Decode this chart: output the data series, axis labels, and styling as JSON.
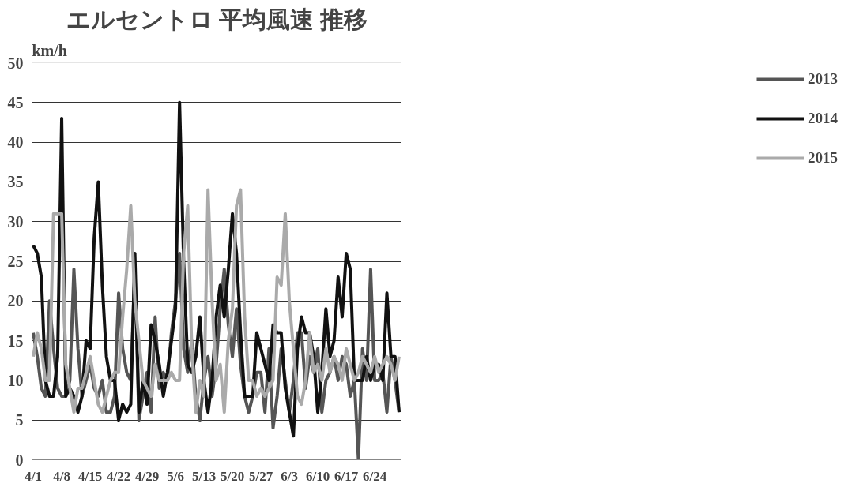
{
  "chart_data": {
    "type": "line",
    "title": "エルセントロ 平均風速 推移",
    "ylabel": "km/h",
    "categories": [
      "4/1",
      null,
      null,
      null,
      null,
      null,
      null,
      "4/8",
      null,
      null,
      null,
      null,
      null,
      null,
      "4/15",
      null,
      null,
      null,
      null,
      null,
      null,
      "4/22",
      null,
      null,
      null,
      null,
      null,
      null,
      "4/29",
      null,
      null,
      null,
      null,
      null,
      null,
      "5/6",
      null,
      null,
      null,
      null,
      null,
      null,
      "5/13",
      null,
      null,
      null,
      null,
      null,
      null,
      "5/20",
      null,
      null,
      null,
      null,
      null,
      null,
      "5/27",
      null,
      null,
      null,
      null,
      null,
      null,
      "6/3",
      null,
      null,
      null,
      null,
      null,
      null,
      "6/10",
      null,
      null,
      null,
      null,
      null,
      null,
      "6/17",
      null,
      null,
      null,
      null,
      null,
      null,
      "6/24",
      null,
      null,
      null,
      null,
      null,
      null
    ],
    "series": [
      {
        "name": "2013",
        "color": "#555555",
        "values": [
          16,
          13,
          9,
          8,
          20,
          14,
          9,
          8,
          8,
          10,
          24,
          14,
          8,
          10,
          12,
          9,
          8,
          10,
          6,
          6,
          8,
          21,
          14,
          11,
          10,
          24,
          5,
          8,
          11,
          6,
          18,
          9,
          11,
          10,
          16,
          20,
          26,
          14,
          11,
          15,
          8,
          5,
          10,
          13,
          8,
          12,
          19,
          24,
          17,
          13,
          19,
          12,
          8,
          6,
          8,
          11,
          11,
          6,
          14,
          4,
          8,
          14,
          10,
          6,
          10,
          16,
          16,
          9,
          13,
          11,
          14,
          6,
          10,
          11,
          13,
          10,
          13,
          12,
          8,
          10,
          0,
          14,
          10,
          24,
          10,
          10,
          11,
          6,
          13,
          10,
          6
        ]
      },
      {
        "name": "2014",
        "color": "#111111",
        "values": [
          27,
          26,
          23,
          10,
          8,
          8,
          13,
          43,
          8,
          9,
          8,
          6,
          8,
          15,
          14,
          28,
          35,
          22,
          13,
          10,
          10,
          5,
          7,
          6,
          7,
          26,
          6,
          10,
          7,
          17,
          15,
          12,
          8,
          11,
          15,
          19,
          45,
          25,
          12,
          11,
          13,
          18,
          10,
          6,
          10,
          18,
          22,
          18,
          24,
          31,
          26,
          16,
          8,
          8,
          8,
          16,
          14,
          12,
          10,
          17,
          16,
          16,
          9,
          6,
          3,
          14,
          18,
          16,
          16,
          13,
          6,
          11,
          19,
          13,
          15,
          23,
          18,
          26,
          24,
          10,
          10,
          10,
          13,
          10,
          12,
          12,
          10,
          21,
          13,
          13,
          6
        ]
      },
      {
        "name": "2015",
        "color": "#aaaaaa",
        "values": [
          13,
          16,
          14,
          10,
          10,
          31,
          31,
          31,
          12,
          9,
          6,
          9,
          9,
          11,
          13,
          10,
          7,
          6,
          8,
          10,
          11,
          11,
          18,
          24,
          32,
          20,
          15,
          10,
          9,
          8,
          12,
          10,
          10,
          10,
          11,
          10,
          10,
          26,
          32,
          14,
          6,
          10,
          8,
          34,
          20,
          10,
          12,
          6,
          15,
          19,
          32,
          34,
          18,
          10,
          10,
          8,
          9,
          8,
          9,
          10,
          23,
          22,
          31,
          20,
          14,
          8,
          7,
          10,
          16,
          11,
          12,
          10,
          14,
          11,
          13,
          12,
          10,
          14,
          12,
          10,
          11,
          13,
          12,
          11,
          13,
          11,
          12,
          13,
          12,
          10,
          13
        ]
      }
    ],
    "ylim": [
      0,
      50
    ],
    "yticks": [
      0,
      5,
      10,
      15,
      20,
      25,
      30,
      35,
      40,
      45,
      50
    ],
    "grid": "y",
    "legend": "right",
    "marker": "none",
    "line_style": "solid"
  }
}
